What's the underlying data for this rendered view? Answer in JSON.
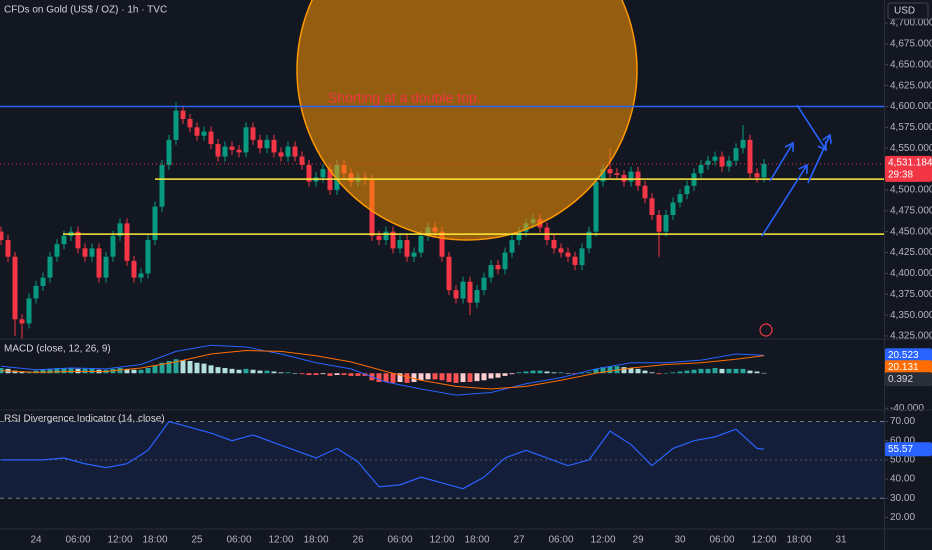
{
  "chart_data": [
    {
      "type": "candlestick",
      "title": "CFDs on Gold (US$ / OZ) · 1h · TVC",
      "currency": "USD",
      "annotation": "Shorting at a double top.",
      "up_color": "#089981",
      "down_color": "#f23645",
      "open": [
        4450,
        4440,
        4420,
        4345,
        4340,
        4370,
        4385,
        4395,
        4420,
        4435,
        4445,
        4450,
        4430,
        4420,
        4430,
        4395,
        4420,
        4445,
        4460,
        4415,
        4395,
        4400,
        4440,
        4480,
        4530,
        4560,
        4595,
        4585,
        4575,
        4565,
        4570,
        4555,
        4540,
        4552,
        4548,
        4545,
        4575,
        4560,
        4550,
        4560,
        4545,
        4540,
        4552,
        4540,
        4530,
        4510,
        4515,
        4525,
        4500,
        4530,
        4520,
        4510,
        4515,
        4512,
        4445,
        4440,
        4450,
        4430,
        4440,
        4420,
        4425,
        4445,
        4455,
        4450,
        4420,
        4380,
        4370,
        4390,
        4365,
        4380,
        4395,
        4410,
        4405,
        4425,
        4440,
        4450,
        4460,
        4465,
        4455,
        4440,
        4430,
        4425,
        4420,
        4410,
        4430,
        4450,
        4510,
        4525,
        4520,
        4518,
        4510,
        4522,
        4505,
        4490,
        4470,
        4450,
        4470,
        4485,
        4495,
        4505,
        4520,
        4530,
        4535,
        4540,
        4528,
        4535,
        4550,
        4560,
        4520,
        4515
      ],
      "high": [
        4456,
        4446,
        4426,
        4351,
        4376,
        4391,
        4401,
        4426,
        4441,
        4451,
        4456,
        4456,
        4436,
        4436,
        4436,
        4426,
        4451,
        4466,
        4466,
        4421,
        4406,
        4446,
        4486,
        4536,
        4566,
        4605,
        4601,
        4591,
        4581,
        4576,
        4576,
        4561,
        4558,
        4558,
        4554,
        4581,
        4581,
        4566,
        4566,
        4566,
        4551,
        4558,
        4558,
        4546,
        4536,
        4521,
        4531,
        4531,
        4536,
        4536,
        4526,
        4521,
        4521,
        4518,
        4451,
        4456,
        4456,
        4446,
        4446,
        4431,
        4451,
        4461,
        4461,
        4456,
        4426,
        4386,
        4396,
        4396,
        4386,
        4401,
        4416,
        4416,
        4431,
        4446,
        4456,
        4466,
        4471,
        4471,
        4461,
        4446,
        4436,
        4431,
        4426,
        4436,
        4456,
        4516,
        4531,
        4550,
        4526,
        4524,
        4528,
        4528,
        4511,
        4496,
        4476,
        4476,
        4491,
        4501,
        4511,
        4526,
        4536,
        4541,
        4546,
        4546,
        4541,
        4556,
        4578,
        4566,
        4526,
        4537
      ],
      "low": [
        4434,
        4414,
        4325,
        4322,
        4334,
        4364,
        4379,
        4389,
        4414,
        4429,
        4439,
        4424,
        4414,
        4414,
        4389,
        4389,
        4414,
        4439,
        4409,
        4389,
        4389,
        4394,
        4434,
        4474,
        4524,
        4554,
        4579,
        4569,
        4559,
        4559,
        4549,
        4534,
        4534,
        4542,
        4539,
        4539,
        4554,
        4544,
        4544,
        4539,
        4534,
        4534,
        4534,
        4524,
        4504,
        4504,
        4509,
        4494,
        4494,
        4514,
        4504,
        4504,
        4506,
        4439,
        4434,
        4434,
        4424,
        4424,
        4414,
        4414,
        4419,
        4439,
        4444,
        4414,
        4374,
        4364,
        4364,
        4350,
        4359,
        4374,
        4389,
        4399,
        4399,
        4419,
        4434,
        4444,
        4454,
        4449,
        4434,
        4424,
        4419,
        4414,
        4404,
        4404,
        4424,
        4444,
        4504,
        4514,
        4512,
        4504,
        4504,
        4499,
        4484,
        4464,
        4420,
        4444,
        4464,
        4479,
        4489,
        4499,
        4514,
        4524,
        4529,
        4522,
        4522,
        4529,
        4544,
        4514,
        4509,
        4509
      ],
      "close": [
        4440,
        4420,
        4345,
        4340,
        4370,
        4385,
        4395,
        4420,
        4435,
        4445,
        4450,
        4430,
        4420,
        4430,
        4395,
        4420,
        4445,
        4460,
        4415,
        4395,
        4400,
        4440,
        4480,
        4530,
        4560,
        4595,
        4585,
        4575,
        4565,
        4570,
        4555,
        4540,
        4552,
        4548,
        4545,
        4575,
        4560,
        4550,
        4560,
        4545,
        4540,
        4552,
        4540,
        4530,
        4510,
        4515,
        4525,
        4500,
        4530,
        4520,
        4510,
        4515,
        4512,
        4445,
        4440,
        4450,
        4430,
        4440,
        4420,
        4425,
        4445,
        4455,
        4450,
        4420,
        4380,
        4370,
        4390,
        4365,
        4380,
        4395,
        4410,
        4405,
        4425,
        4440,
        4450,
        4460,
        4465,
        4455,
        4440,
        4430,
        4425,
        4420,
        4410,
        4430,
        4450,
        4510,
        4525,
        4520,
        4518,
        4510,
        4522,
        4505,
        4490,
        4470,
        4450,
        4470,
        4485,
        4495,
        4505,
        4520,
        4530,
        4535,
        4540,
        4528,
        4535,
        4550,
        4560,
        4520,
        4515,
        4531.184
      ],
      "last_value_label": "4,531.184",
      "countdown": "29:38",
      "levels": [
        {
          "value": 4600,
          "color": "#2962ff"
        },
        {
          "value": 4513,
          "color": "#ffeb3b"
        },
        {
          "value": 4447,
          "color": "#ffeb3b"
        }
      ],
      "ylim": [
        4322.6,
        4727.6
      ],
      "yticks": [
        {
          "value": 4325,
          "label": "4,325.000"
        },
        {
          "value": 4350,
          "label": "4,350.000"
        },
        {
          "value": 4375,
          "label": "4,375.000"
        },
        {
          "value": 4400,
          "label": "4,400.000"
        },
        {
          "value": 4425,
          "label": "4,425.000"
        },
        {
          "value": 4450,
          "label": "4,450.000"
        },
        {
          "value": 4475,
          "label": "4,475.000"
        },
        {
          "value": 4500,
          "label": "4,500.000"
        },
        {
          "value": 4525,
          "label": "4,525.000"
        },
        {
          "value": 4550,
          "label": "4,550.000"
        },
        {
          "value": 4575,
          "label": "4,575.000"
        },
        {
          "value": 4600,
          "label": "4,600.000"
        },
        {
          "value": 4625,
          "label": "4,625.000"
        },
        {
          "value": 4650,
          "label": "4,650.000"
        },
        {
          "value": 4675,
          "label": "4,675.000"
        },
        {
          "value": 4700,
          "label": "4,700.000"
        }
      ],
      "xlim": [
        0,
        126
      ],
      "xticks": [
        {
          "value": 5,
          "label": "24"
        },
        {
          "value": 11,
          "label": "06:00"
        },
        {
          "value": 17,
          "label": "12:00"
        },
        {
          "value": 22,
          "label": "18:00"
        },
        {
          "value": 28,
          "label": "25"
        },
        {
          "value": 34,
          "label": "06:00"
        },
        {
          "value": 40,
          "label": "12:00"
        },
        {
          "value": 45,
          "label": "18:00"
        },
        {
          "value": 51,
          "label": "26"
        },
        {
          "value": 57,
          "label": "06:00"
        },
        {
          "value": 63,
          "label": "12:00"
        },
        {
          "value": 68,
          "label": "18:00"
        },
        {
          "value": 74,
          "label": "27"
        },
        {
          "value": 80,
          "label": "06:00"
        },
        {
          "value": 86,
          "label": "12:00"
        },
        {
          "value": 91,
          "label": "29"
        },
        {
          "value": 97,
          "label": "30"
        },
        {
          "value": 103,
          "label": "06:00"
        },
        {
          "value": 109,
          "label": "12:00"
        },
        {
          "value": 114,
          "label": "18:00"
        },
        {
          "value": 120,
          "label": "31"
        }
      ],
      "grid": false
    },
    {
      "type": "macd",
      "title": "MACD (close, 12, 26, 9)",
      "histogram": [
        6,
        5,
        3,
        2,
        2,
        3,
        4,
        5,
        6,
        6,
        6,
        5,
        5,
        5,
        4,
        4,
        5,
        6,
        5,
        4,
        4,
        6,
        9,
        12,
        14,
        16,
        15,
        14,
        12,
        11,
        9,
        7,
        6,
        5,
        4,
        5,
        4,
        3,
        3,
        2,
        1,
        1,
        0,
        -1,
        -2,
        -2,
        -1,
        -3,
        -2,
        -2,
        -3,
        -3,
        -3,
        -8,
        -10,
        -10,
        -11,
        -10,
        -11,
        -10,
        -8,
        -7,
        -7,
        -8,
        -10,
        -11,
        -10,
        -10,
        -9,
        -8,
        -6,
        -5,
        -3,
        -1,
        1,
        2,
        3,
        3,
        2,
        1,
        1,
        0,
        -1,
        0,
        1,
        5,
        7,
        8,
        8,
        7,
        6,
        5,
        3,
        1,
        -1,
        0,
        1,
        2,
        3,
        4,
        5,
        5,
        6,
        5,
        5,
        5,
        5,
        3,
        2,
        0.392
      ],
      "histogram_value_label": "0.392",
      "histogram_colors": {
        "pos_up": "#26a69a",
        "pos_down": "#b2dfdb",
        "neg_down": "#ff5252",
        "neg_up": "#ffcdd2"
      },
      "series": [
        {
          "color": "#2962ff",
          "x": [
            0,
            5,
            10,
            15,
            20,
            25,
            30,
            35,
            40,
            45,
            50,
            55,
            60,
            65,
            70,
            75,
            80,
            85,
            90,
            95,
            100,
            105,
            109
          ],
          "values": [
            8,
            4,
            6,
            5,
            10,
            25,
            32,
            30,
            22,
            12,
            5,
            -10,
            -18,
            -25,
            -22,
            -12,
            -5,
            5,
            12,
            12,
            15,
            22,
            20.523
          ],
          "value_label": "20.523"
        },
        {
          "color": "#ff6d00",
          "x": [
            0,
            5,
            10,
            15,
            20,
            25,
            30,
            35,
            40,
            45,
            50,
            55,
            60,
            65,
            70,
            75,
            80,
            85,
            90,
            95,
            100,
            105,
            109
          ],
          "values": [
            3,
            1,
            2,
            2,
            6,
            13,
            22,
            26,
            25,
            20,
            13,
            2,
            -8,
            -15,
            -18,
            -15,
            -8,
            0,
            6,
            10,
            12,
            16,
            20.131
          ],
          "value_label": "20.131"
        }
      ],
      "ylim": [
        -42,
        38
      ],
      "yticks": [
        {
          "value": -40,
          "label": "-40.000"
        }
      ]
    },
    {
      "type": "rsi",
      "title": "RSI Divergence Indicator (14, close)",
      "color": "#2962ff",
      "x": [
        0,
        3,
        6,
        9,
        12,
        15,
        18,
        21,
        24,
        27,
        30,
        33,
        36,
        39,
        42,
        45,
        48,
        51,
        54,
        57,
        60,
        63,
        66,
        69,
        72,
        75,
        78,
        81,
        84,
        87,
        90,
        93,
        96,
        99,
        102,
        105,
        108,
        109
      ],
      "values": [
        50,
        50,
        50,
        51,
        48,
        46,
        48,
        55,
        70,
        67,
        64,
        60,
        63,
        59,
        55,
        51,
        56,
        49,
        36,
        37,
        41,
        38,
        35,
        41,
        51,
        55,
        51,
        47,
        50,
        65,
        58,
        47,
        56,
        60,
        62,
        66,
        56,
        55.57
      ],
      "value_label": "55.57",
      "band": [
        30,
        70
      ],
      "midline": 50,
      "ylim": [
        14,
        76
      ],
      "yticks": [
        {
          "value": 20,
          "label": "20.00"
        },
        {
          "value": 30,
          "label": "30.00"
        },
        {
          "value": 40,
          "label": "40.00"
        },
        {
          "value": 50,
          "label": "50.00"
        },
        {
          "value": 60,
          "label": "60.00"
        },
        {
          "value": 70,
          "label": "70.00"
        }
      ]
    }
  ]
}
